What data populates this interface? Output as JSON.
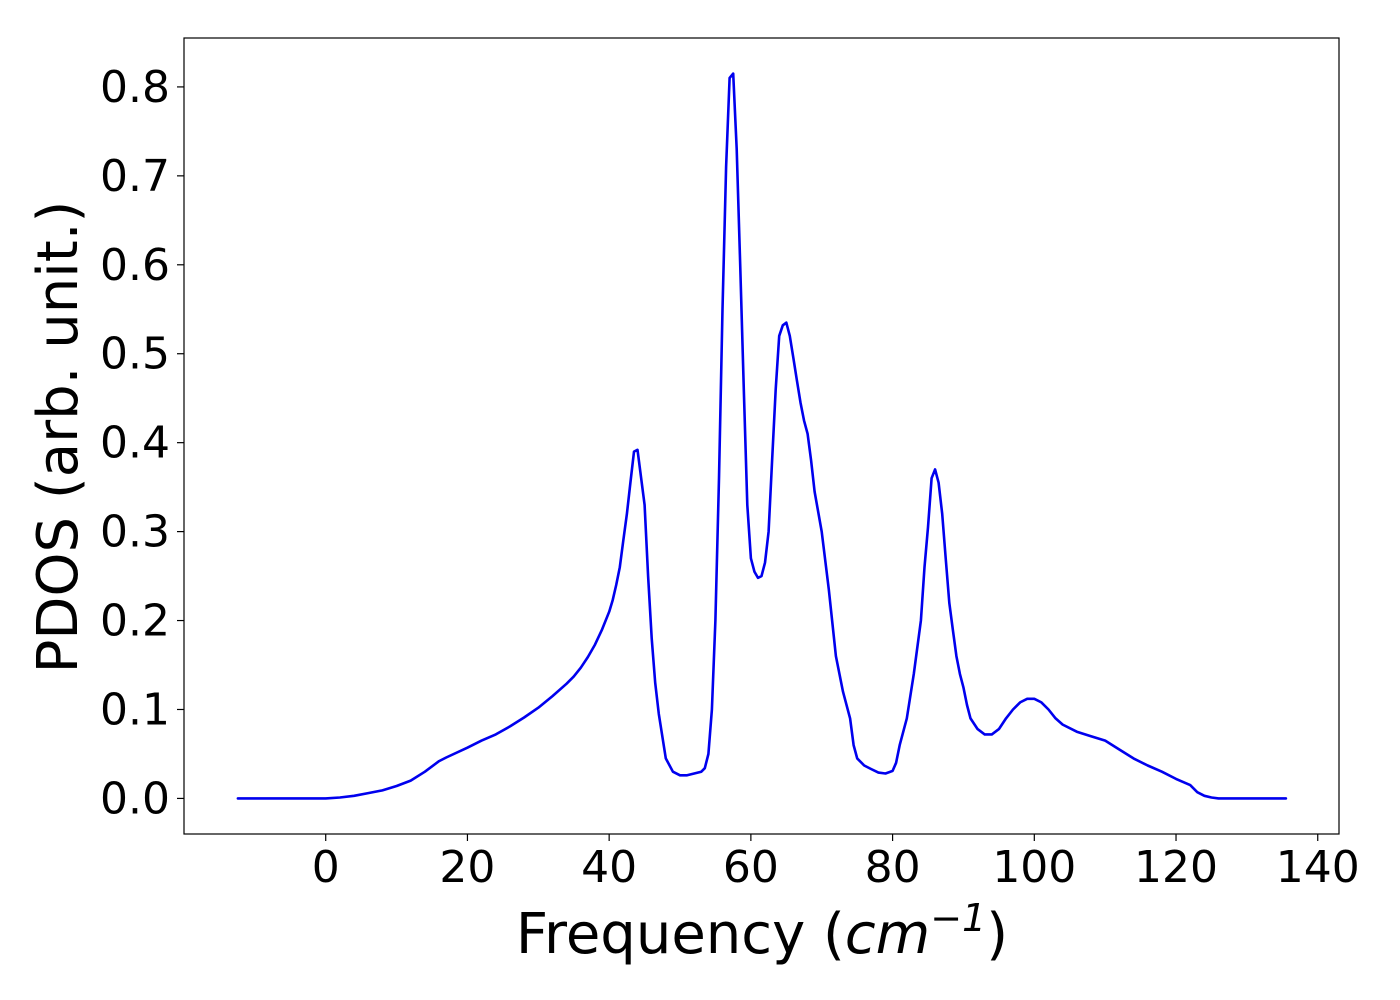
{
  "chart_data": {
    "type": "line",
    "title": "",
    "xlabel_main": "Frequency (",
    "xlabel_unit": "cm",
    "xlabel_exp": "−1",
    "xlabel_close": ")",
    "ylabel": "PDOS (arb. unit.)",
    "xlim": [
      -20,
      143
    ],
    "ylim": [
      -0.04,
      0.855
    ],
    "xticks": [
      0,
      20,
      40,
      60,
      80,
      100,
      120,
      140
    ],
    "xtick_labels": [
      "0",
      "20",
      "40",
      "60",
      "80",
      "100",
      "120",
      "140"
    ],
    "yticks": [
      0.0,
      0.1,
      0.2,
      0.3,
      0.4,
      0.5,
      0.6,
      0.7,
      0.8
    ],
    "ytick_labels": [
      "0.0",
      "0.1",
      "0.2",
      "0.3",
      "0.4",
      "0.5",
      "0.6",
      "0.7",
      "0.8"
    ],
    "grid": false,
    "legend": false,
    "series": [
      {
        "color": "#0000ee",
        "x": [
          -12.4,
          -5,
          0,
          2,
          4,
          6,
          8,
          10,
          12,
          14,
          16,
          17,
          20,
          22,
          24,
          26,
          28,
          30,
          32,
          34,
          35,
          36,
          37,
          38,
          39,
          40,
          40.5,
          41,
          41.5,
          42,
          42.5,
          43,
          43.5,
          44,
          45,
          45.5,
          46,
          46.5,
          47,
          47.5,
          48,
          49,
          50,
          51,
          52,
          52.5,
          53,
          53.5,
          54,
          54.5,
          55,
          55.5,
          56,
          56.5,
          57,
          57.5,
          58,
          58.5,
          59,
          59.5,
          60,
          60.5,
          61,
          61.5,
          62,
          62.5,
          63,
          63.5,
          64,
          64.5,
          65,
          65.5,
          66,
          66.5,
          67,
          67.5,
          68,
          68.5,
          69,
          70,
          71,
          72,
          73,
          74,
          74.5,
          75,
          76,
          77,
          78,
          79,
          80,
          80.5,
          81,
          82,
          83,
          84,
          84.5,
          85,
          85.5,
          86,
          86.5,
          87,
          87.5,
          88,
          88.5,
          89,
          89.5,
          90,
          90.5,
          91,
          92,
          93,
          94,
          95,
          96,
          97,
          98,
          99,
          100,
          101,
          102,
          103,
          104,
          106,
          108,
          110,
          112,
          114,
          116,
          118,
          120,
          122,
          123,
          124,
          125,
          126,
          128,
          130,
          135.5
        ],
        "y": [
          0.0,
          0.0,
          0.0,
          0.001,
          0.003,
          0.006,
          0.009,
          0.014,
          0.02,
          0.03,
          0.042,
          0.046,
          0.057,
          0.065,
          0.072,
          0.081,
          0.091,
          0.102,
          0.115,
          0.129,
          0.137,
          0.147,
          0.159,
          0.173,
          0.19,
          0.21,
          0.223,
          0.24,
          0.26,
          0.29,
          0.32,
          0.355,
          0.39,
          0.392,
          0.33,
          0.25,
          0.18,
          0.13,
          0.095,
          0.07,
          0.045,
          0.03,
          0.026,
          0.026,
          0.028,
          0.029,
          0.03,
          0.034,
          0.05,
          0.1,
          0.2,
          0.36,
          0.55,
          0.71,
          0.81,
          0.815,
          0.73,
          0.6,
          0.46,
          0.33,
          0.27,
          0.255,
          0.248,
          0.25,
          0.265,
          0.3,
          0.38,
          0.46,
          0.52,
          0.532,
          0.535,
          0.52,
          0.495,
          0.47,
          0.445,
          0.425,
          0.41,
          0.38,
          0.345,
          0.3,
          0.235,
          0.16,
          0.12,
          0.09,
          0.06,
          0.045,
          0.037,
          0.033,
          0.029,
          0.028,
          0.031,
          0.04,
          0.06,
          0.09,
          0.14,
          0.2,
          0.26,
          0.305,
          0.36,
          0.37,
          0.355,
          0.32,
          0.27,
          0.22,
          0.19,
          0.16,
          0.14,
          0.125,
          0.105,
          0.09,
          0.078,
          0.072,
          0.072,
          0.078,
          0.09,
          0.1,
          0.108,
          0.112,
          0.112,
          0.108,
          0.1,
          0.09,
          0.083,
          0.075,
          0.07,
          0.065,
          0.055,
          0.045,
          0.037,
          0.03,
          0.022,
          0.015,
          0.007,
          0.003,
          0.001,
          0.0,
          0.0,
          0.0,
          0.0
        ]
      }
    ]
  }
}
